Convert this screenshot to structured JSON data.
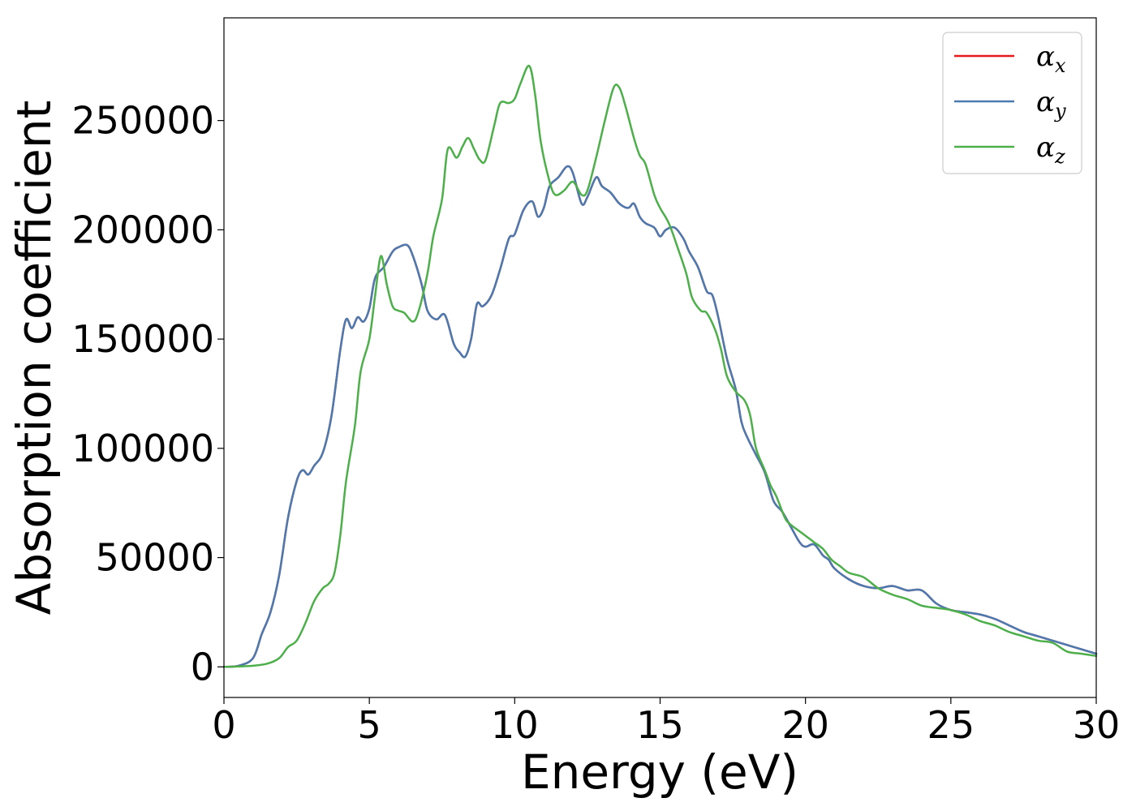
{
  "chart_data": {
    "type": "line",
    "xlabel": "Energy (eV)",
    "ylabel": "Absorption coefficient",
    "xlim": [
      0,
      30
    ],
    "ylim": [
      -14000,
      297000
    ],
    "xticks": [
      0,
      5,
      10,
      15,
      20,
      25,
      30
    ],
    "yticks": [
      0,
      50000,
      100000,
      150000,
      200000,
      250000
    ],
    "xtick_labels": [
      "0",
      "5",
      "10",
      "15",
      "20",
      "25",
      "30"
    ],
    "ytick_labels": [
      "0",
      "50000",
      "100000",
      "150000",
      "200000",
      "250000"
    ],
    "grid": false,
    "legend_position": "top-right",
    "series": [
      {
        "name": "α_x",
        "label_base": "α",
        "label_sub": "x",
        "color": "#e41a1c",
        "x": [
          0,
          0.5,
          1.0,
          1.3,
          1.6,
          1.9,
          2.2,
          2.5,
          2.7,
          2.9,
          3.1,
          3.4,
          3.7,
          4.0,
          4.2,
          4.4,
          4.6,
          4.8,
          5.0,
          5.2,
          5.5,
          5.8,
          6.0,
          6.3,
          6.5,
          6.8,
          7.0,
          7.3,
          7.6,
          7.9,
          8.1,
          8.3,
          8.5,
          8.7,
          8.9,
          9.2,
          9.5,
          9.8,
          10.0,
          10.3,
          10.6,
          10.8,
          11.0,
          11.2,
          11.5,
          11.8,
          12.0,
          12.3,
          12.5,
          12.8,
          13.0,
          13.3,
          13.6,
          13.9,
          14.1,
          14.3,
          14.5,
          14.8,
          15.0,
          15.2,
          15.5,
          15.8,
          16.0,
          16.3,
          16.6,
          16.8,
          17.0,
          17.3,
          17.6,
          17.8,
          18.0,
          18.3,
          18.6,
          18.9,
          19.2,
          19.5,
          19.8,
          20.0,
          20.3,
          20.6,
          20.8,
          21.0,
          21.5,
          22.0,
          22.5,
          23.0,
          23.5,
          24.0,
          24.5,
          25.0,
          25.5,
          26.0,
          26.5,
          27.0,
          27.5,
          28.0,
          28.5,
          29.0,
          29.5,
          30.0
        ],
        "y": [
          0,
          500,
          4000,
          15000,
          25000,
          42000,
          68000,
          85000,
          90000,
          88000,
          92000,
          98000,
          115000,
          145000,
          159000,
          155000,
          160000,
          158000,
          164000,
          178000,
          183000,
          190000,
          192000,
          193000,
          188000,
          175000,
          163000,
          159000,
          161000,
          148000,
          144000,
          142000,
          150000,
          166000,
          165000,
          170000,
          182000,
          196000,
          198000,
          209000,
          213000,
          206000,
          210000,
          220000,
          224000,
          229000,
          226000,
          212000,
          215000,
          224000,
          220000,
          217000,
          212000,
          210000,
          212000,
          206000,
          203000,
          201000,
          197000,
          200000,
          201000,
          196000,
          190000,
          183000,
          172000,
          170000,
          160000,
          141000,
          127000,
          112000,
          105000,
          97000,
          89000,
          76000,
          71000,
          64000,
          57000,
          55000,
          56000,
          51000,
          49000,
          45000,
          40000,
          37000,
          36000,
          37000,
          35000,
          35000,
          29000,
          26000,
          25000,
          24000,
          22000,
          19000,
          16000,
          14000,
          12000,
          10000,
          8000,
          6000
        ]
      },
      {
        "name": "α_y",
        "label_base": "α",
        "label_sub": "y",
        "color": "#4a7aaf",
        "x": [
          0,
          0.5,
          1.0,
          1.3,
          1.6,
          1.9,
          2.2,
          2.5,
          2.7,
          2.9,
          3.1,
          3.4,
          3.7,
          4.0,
          4.2,
          4.4,
          4.6,
          4.8,
          5.0,
          5.2,
          5.5,
          5.8,
          6.0,
          6.3,
          6.5,
          6.8,
          7.0,
          7.3,
          7.6,
          7.9,
          8.1,
          8.3,
          8.5,
          8.7,
          8.9,
          9.2,
          9.5,
          9.8,
          10.0,
          10.3,
          10.6,
          10.8,
          11.0,
          11.2,
          11.5,
          11.8,
          12.0,
          12.3,
          12.5,
          12.8,
          13.0,
          13.3,
          13.6,
          13.9,
          14.1,
          14.3,
          14.5,
          14.8,
          15.0,
          15.2,
          15.5,
          15.8,
          16.0,
          16.3,
          16.6,
          16.8,
          17.0,
          17.3,
          17.6,
          17.8,
          18.0,
          18.3,
          18.6,
          18.9,
          19.2,
          19.5,
          19.8,
          20.0,
          20.3,
          20.6,
          20.8,
          21.0,
          21.5,
          22.0,
          22.5,
          23.0,
          23.5,
          24.0,
          24.5,
          25.0,
          25.5,
          26.0,
          26.5,
          27.0,
          27.5,
          28.0,
          28.5,
          29.0,
          29.5,
          30.0
        ],
        "y": [
          0,
          500,
          4000,
          15000,
          25000,
          42000,
          68000,
          85000,
          90000,
          88000,
          92000,
          98000,
          115000,
          145000,
          159000,
          155000,
          160000,
          158000,
          164000,
          178000,
          183000,
          190000,
          192000,
          193000,
          188000,
          175000,
          163000,
          159000,
          161000,
          148000,
          144000,
          142000,
          150000,
          166000,
          165000,
          170000,
          182000,
          196000,
          198000,
          209000,
          213000,
          206000,
          210000,
          220000,
          224000,
          229000,
          226000,
          212000,
          215000,
          224000,
          220000,
          217000,
          212000,
          210000,
          212000,
          206000,
          203000,
          201000,
          197000,
          200000,
          201000,
          196000,
          190000,
          183000,
          172000,
          170000,
          160000,
          141000,
          127000,
          112000,
          105000,
          97000,
          89000,
          76000,
          71000,
          64000,
          57000,
          55000,
          56000,
          51000,
          49000,
          45000,
          40000,
          37000,
          36000,
          37000,
          35000,
          35000,
          29000,
          26000,
          25000,
          24000,
          22000,
          19000,
          16000,
          14000,
          12000,
          10000,
          8000,
          6000
        ]
      },
      {
        "name": "α_z",
        "label_base": "α",
        "label_sub": "z",
        "color": "#4daf4a",
        "x": [
          0,
          0.5,
          1.0,
          1.5,
          1.9,
          2.2,
          2.5,
          2.8,
          3.1,
          3.4,
          3.6,
          3.8,
          4.0,
          4.2,
          4.5,
          4.7,
          5.0,
          5.2,
          5.4,
          5.6,
          5.8,
          6.0,
          6.2,
          6.5,
          6.7,
          7.0,
          7.2,
          7.5,
          7.7,
          8.0,
          8.2,
          8.4,
          8.6,
          8.8,
          9.0,
          9.3,
          9.5,
          9.8,
          10.0,
          10.2,
          10.5,
          10.7,
          10.9,
          11.2,
          11.4,
          11.7,
          12.0,
          12.3,
          12.5,
          12.8,
          13.1,
          13.4,
          13.6,
          13.8,
          14.1,
          14.3,
          14.5,
          14.8,
          15.0,
          15.3,
          15.6,
          15.9,
          16.1,
          16.4,
          16.6,
          16.9,
          17.1,
          17.3,
          17.6,
          17.9,
          18.1,
          18.3,
          18.6,
          18.8,
          19.0,
          19.3,
          19.5,
          19.8,
          20.0,
          20.3,
          20.6,
          20.9,
          21.2,
          21.5,
          22.0,
          22.5,
          23.0,
          23.5,
          24.0,
          24.5,
          25.0,
          25.5,
          26.0,
          26.5,
          27.0,
          27.5,
          28.0,
          28.5,
          29.0,
          29.5,
          30.0
        ],
        "y": [
          0,
          200,
          500,
          1500,
          4000,
          9000,
          12000,
          20000,
          30000,
          36000,
          38000,
          43000,
          60000,
          85000,
          110000,
          135000,
          150000,
          170000,
          188000,
          175000,
          165000,
          163000,
          162000,
          158000,
          163000,
          180000,
          197000,
          214000,
          237000,
          233000,
          238000,
          242000,
          237000,
          232000,
          232000,
          248000,
          258000,
          258000,
          260000,
          267000,
          275000,
          262000,
          240000,
          222000,
          216000,
          218000,
          222000,
          216000,
          218000,
          233000,
          250000,
          265000,
          265000,
          257000,
          242000,
          234000,
          230000,
          216000,
          210000,
          203000,
          192000,
          180000,
          169000,
          163000,
          162000,
          154000,
          145000,
          133000,
          126000,
          122000,
          115000,
          100000,
          90000,
          83000,
          78000,
          68000,
          65000,
          62000,
          60000,
          57000,
          54000,
          49000,
          46000,
          43000,
          41000,
          36000,
          33000,
          31000,
          28000,
          27000,
          26000,
          24000,
          21000,
          19000,
          16000,
          14000,
          12000,
          11000,
          7000,
          6000,
          5000
        ]
      }
    ]
  }
}
